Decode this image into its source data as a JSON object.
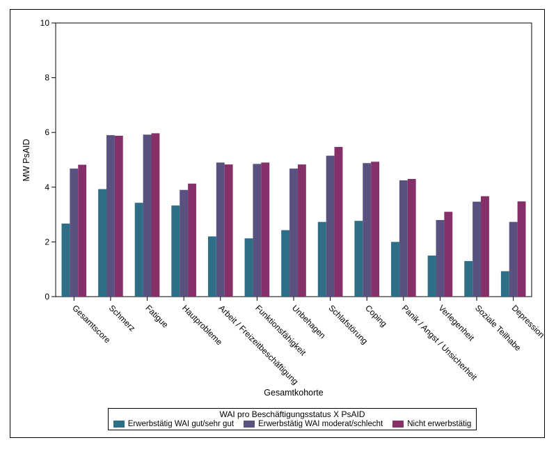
{
  "chart_data": {
    "type": "bar",
    "title": "",
    "xlabel": "Gesamtkohorte",
    "ylabel": "MW PsAID",
    "ylim": [
      0,
      10
    ],
    "yticks": [
      "0",
      "2",
      "4",
      "6",
      "8",
      "10"
    ],
    "grid": false,
    "legend_position": "bottom",
    "legend_title": "WAI pro Beschäftigungsstatus X PsAID",
    "categories": [
      "Gesamtscore",
      "Schmerz",
      "Fatigue",
      "Hautprobleme",
      "Arbeit / Freizeitbeschäftigung",
      "Funktionsfähigkeit",
      "Unbehagen",
      "Schlafstörung",
      "Coping",
      "Panik / Angst / Unsicherheit",
      "Verlegenheit",
      "Soziale Teilhabe",
      "Depression"
    ],
    "series": [
      {
        "name": "Erwerbstätig WAI gut/sehr gut",
        "color": "#2e6e86",
        "values": [
          2.67,
          3.93,
          3.43,
          3.33,
          2.2,
          2.13,
          2.43,
          2.73,
          2.77,
          2.0,
          1.5,
          1.3,
          0.93
        ]
      },
      {
        "name": "Erwerbstätig WAI moderat/schlecht",
        "color": "#5b5180",
        "values": [
          4.68,
          5.9,
          5.92,
          3.9,
          4.9,
          4.85,
          4.68,
          5.15,
          4.88,
          4.25,
          2.8,
          3.47,
          2.73
        ]
      },
      {
        "name": "Nicht erwerbstätig",
        "color": "#86306a",
        "values": [
          4.82,
          5.88,
          5.97,
          4.13,
          4.83,
          4.9,
          4.83,
          5.47,
          4.93,
          4.3,
          3.1,
          3.67,
          3.48
        ]
      }
    ]
  }
}
